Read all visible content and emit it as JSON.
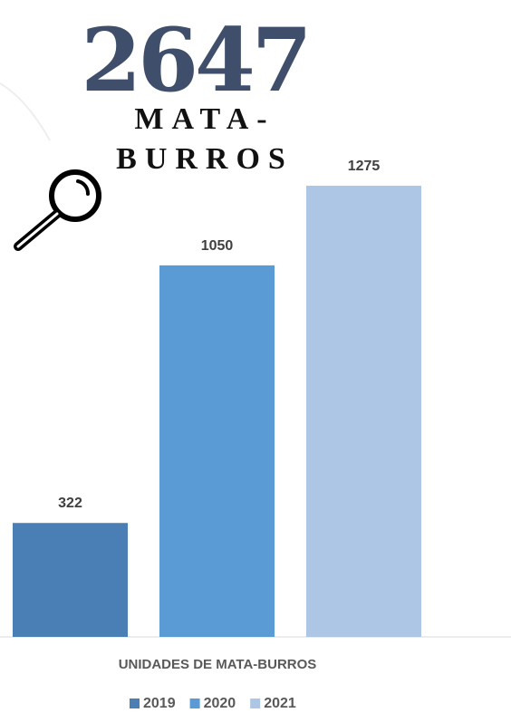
{
  "chart_data": {
    "type": "bar",
    "title": "2647",
    "subtitle": [
      "MATA-",
      "BURROS"
    ],
    "categories": [
      "UNIDADES DE MATA-BURROS"
    ],
    "series": [
      {
        "name": "2019",
        "color": "#4a7fb5",
        "values": [
          322
        ]
      },
      {
        "name": "2020",
        "color": "#5b9bd5",
        "values": [
          1050
        ]
      },
      {
        "name": "2021",
        "color": "#adc6e6",
        "values": [
          1275
        ]
      }
    ],
    "ylim": [
      0,
      1800
    ],
    "legend": "bottom"
  }
}
